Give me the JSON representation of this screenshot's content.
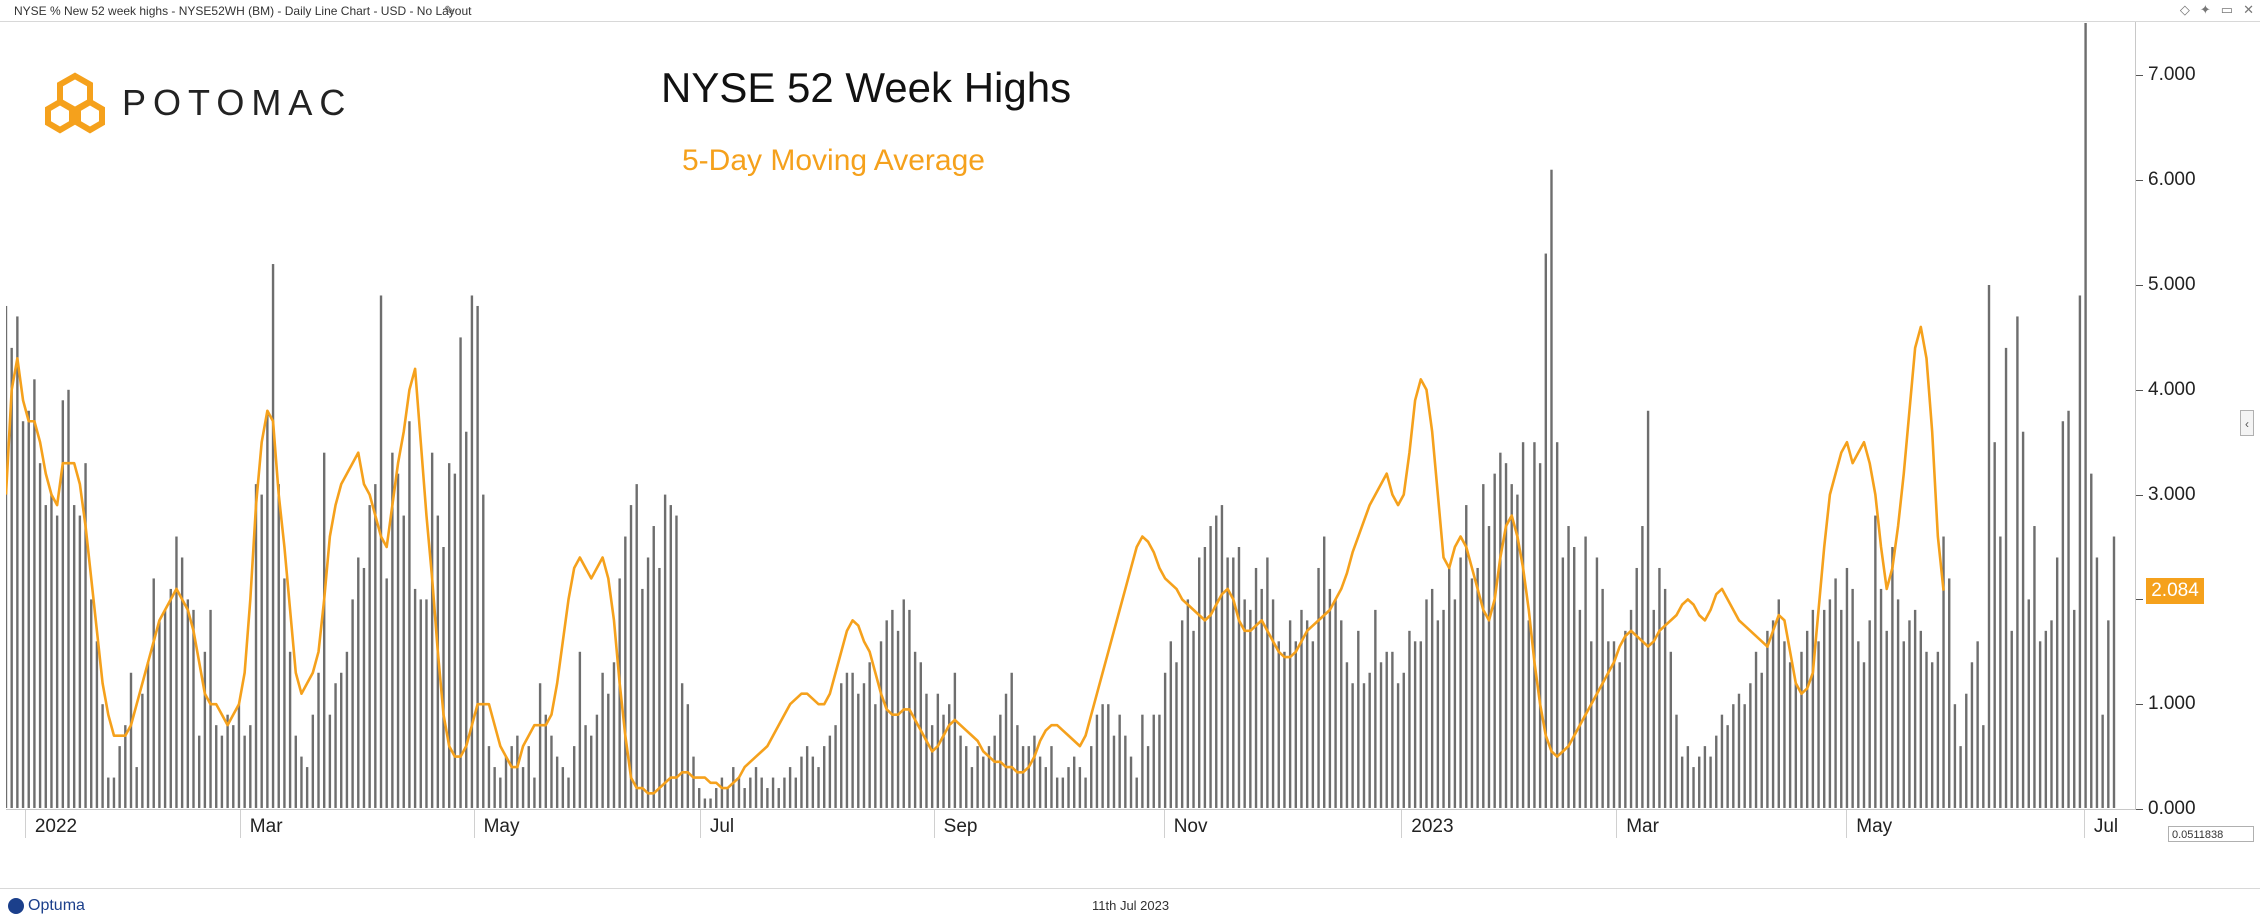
{
  "window": {
    "title": "NYSE % New 52 week highs - NYSE52WH (BM) - Daily Line Chart - USD - No Layout",
    "controls": [
      "◇",
      "✦",
      "▭",
      "✕"
    ]
  },
  "logo": {
    "text": "POTOMAC"
  },
  "chart_data": {
    "type": "bar",
    "title": "NYSE 52 Week Highs",
    "subtitle": "5-Day Moving Average",
    "xlabel": "",
    "ylabel": "",
    "ylim": [
      0,
      7.5
    ],
    "grid": false,
    "y_ticks": [
      "0.000",
      "1.000",
      "2.000",
      "3.000",
      "4.000",
      "5.000",
      "6.000",
      "7.000"
    ],
    "x_ticks": [
      "2022",
      "Mar",
      "May",
      "Jul",
      "Sep",
      "Nov",
      "2023",
      "Mar",
      "May",
      "Jul"
    ],
    "x_range": [
      "2021-12-29",
      "2023-07-11"
    ],
    "last_value": "2.084",
    "colors": {
      "bars": "#6e6e6e",
      "moving_average": "#f5a11c"
    },
    "series": [
      {
        "name": "NYSE % New 52 week highs",
        "kind": "bar",
        "values": [
          4.8,
          4.4,
          4.7,
          3.7,
          3.8,
          4.1,
          3.3,
          2.9,
          3.0,
          2.8,
          3.9,
          4.0,
          2.9,
          2.8,
          3.3,
          2.0,
          1.6,
          1.0,
          0.3,
          0.3,
          0.6,
          0.8,
          1.3,
          0.4,
          1.1,
          1.4,
          2.2,
          1.8,
          1.9,
          2.1,
          2.6,
          2.4,
          2.0,
          1.9,
          0.7,
          1.5,
          1.9,
          0.8,
          0.7,
          0.9,
          0.8,
          1.0,
          0.7,
          0.8,
          3.1,
          3.0,
          3.8,
          5.2,
          3.1,
          2.2,
          1.5,
          0.7,
          0.5,
          0.4,
          0.9,
          1.3,
          3.4,
          0.9,
          1.2,
          1.3,
          1.5,
          2.0,
          2.4,
          2.3,
          2.9,
          3.1,
          4.9,
          2.2,
          3.4,
          3.2,
          2.8,
          3.7,
          2.1,
          2.0,
          2.0,
          3.4,
          2.8,
          2.5,
          3.3,
          3.2,
          4.5,
          3.6,
          4.9,
          4.8,
          3.0,
          0.6,
          0.4,
          0.3,
          0.5,
          0.6,
          0.7,
          0.4,
          0.6,
          0.3,
          1.2,
          0.9,
          0.7,
          0.5,
          0.4,
          0.3,
          0.6,
          1.5,
          0.8,
          0.7,
          0.9,
          1.3,
          1.1,
          1.4,
          2.2,
          2.6,
          2.9,
          3.1,
          2.1,
          2.4,
          2.7,
          2.3,
          3.0,
          2.9,
          2.8,
          1.2,
          1.0,
          0.5,
          0.2,
          0.1,
          0.1,
          0.2,
          0.3,
          0.2,
          0.4,
          0.3,
          0.2,
          0.3,
          0.4,
          0.3,
          0.2,
          0.3,
          0.2,
          0.3,
          0.4,
          0.3,
          0.5,
          0.6,
          0.5,
          0.4,
          0.6,
          0.7,
          0.8,
          1.2,
          1.3,
          1.3,
          1.1,
          1.2,
          1.4,
          1.0,
          1.6,
          1.8,
          1.9,
          1.7,
          2.0,
          1.9,
          1.5,
          1.4,
          1.1,
          0.8,
          1.1,
          0.9,
          1.0,
          1.3,
          0.7,
          0.6,
          0.4,
          0.6,
          0.5,
          0.6,
          0.7,
          0.9,
          1.1,
          1.3,
          0.8,
          0.6,
          0.6,
          0.7,
          0.5,
          0.4,
          0.6,
          0.3,
          0.3,
          0.4,
          0.5,
          0.4,
          0.3,
          0.6,
          0.9,
          1.0,
          1.0,
          0.7,
          0.9,
          0.7,
          0.5,
          0.3,
          0.9,
          0.6,
          0.9,
          0.9,
          1.3,
          1.6,
          1.4,
          1.8,
          2.0,
          1.7,
          2.4,
          2.5,
          2.7,
          2.8,
          2.9,
          2.4,
          2.4,
          2.5,
          2.0,
          1.9,
          2.3,
          2.1,
          2.4,
          2.0,
          1.6,
          1.5,
          1.8,
          1.6,
          1.9,
          1.8,
          1.6,
          2.3,
          2.6,
          2.1,
          2.0,
          1.8,
          1.4,
          1.2,
          1.7,
          1.2,
          1.3,
          1.9,
          1.4,
          1.5,
          1.5,
          1.2,
          1.3,
          1.7,
          1.6,
          1.6,
          2.0,
          2.1,
          1.8,
          1.9,
          2.3,
          2.0,
          2.4,
          2.9,
          2.2,
          2.3,
          3.1,
          2.7,
          3.2,
          3.4,
          3.3,
          3.1,
          3.0,
          3.5,
          1.8,
          3.5,
          3.3,
          5.3,
          6.1,
          3.5,
          2.4,
          2.7,
          2.5,
          1.9,
          2.6,
          1.6,
          2.4,
          2.1,
          1.6,
          1.6,
          1.4,
          1.7,
          1.9,
          2.3,
          2.7,
          3.8,
          1.9,
          2.3,
          2.1,
          1.5,
          0.9,
          0.5,
          0.6,
          0.4,
          0.5,
          0.6,
          0.5,
          0.7,
          0.9,
          0.8,
          1.0,
          1.1,
          1.0,
          1.2,
          1.5,
          1.3,
          1.7,
          1.8,
          2.0,
          1.6,
          1.4,
          1.2,
          1.5,
          1.7,
          1.9,
          1.6,
          1.9,
          2.0,
          2.2,
          1.9,
          2.3,
          2.1,
          1.6,
          1.4,
          1.8,
          2.8,
          2.1,
          1.7,
          2.5,
          2.0,
          1.6,
          1.8,
          1.9,
          1.7,
          1.5,
          1.4,
          1.5,
          2.6,
          2.2,
          1.0,
          0.6,
          1.1,
          1.4,
          1.6,
          0.8,
          5.0,
          3.5,
          2.6,
          4.4,
          1.7,
          4.7,
          3.6,
          2.0,
          2.7,
          1.6,
          1.7,
          1.8,
          2.4,
          3.7,
          3.8,
          1.9,
          4.9,
          7.5,
          3.2,
          2.4,
          0.9,
          1.8,
          2.6
        ]
      },
      {
        "name": "5-Day Moving Average",
        "kind": "line",
        "values": [
          3.0,
          4.0,
          4.3,
          3.9,
          3.7,
          3.7,
          3.5,
          3.2,
          3.0,
          2.9,
          3.3,
          3.3,
          3.3,
          3.1,
          2.7,
          2.2,
          1.7,
          1.2,
          0.9,
          0.7,
          0.7,
          0.7,
          0.8,
          1.0,
          1.2,
          1.4,
          1.6,
          1.8,
          1.9,
          2.0,
          2.1,
          2.0,
          1.9,
          1.7,
          1.4,
          1.1,
          1.0,
          1.0,
          0.9,
          0.8,
          0.9,
          1.0,
          1.3,
          2.0,
          2.9,
          3.5,
          3.8,
          3.7,
          3.0,
          2.5,
          1.9,
          1.3,
          1.1,
          1.2,
          1.3,
          1.5,
          2.0,
          2.6,
          2.9,
          3.1,
          3.2,
          3.3,
          3.4,
          3.1,
          3.0,
          2.8,
          2.6,
          2.5,
          2.9,
          3.3,
          3.6,
          4.0,
          4.2,
          3.5,
          2.8,
          2.2,
          1.5,
          0.9,
          0.6,
          0.5,
          0.5,
          0.6,
          0.8,
          1.0,
          1.0,
          1.0,
          0.8,
          0.6,
          0.5,
          0.4,
          0.4,
          0.6,
          0.7,
          0.8,
          0.8,
          0.8,
          0.9,
          1.2,
          1.6,
          2.0,
          2.3,
          2.4,
          2.3,
          2.2,
          2.3,
          2.4,
          2.2,
          1.8,
          1.2,
          0.7,
          0.3,
          0.2,
          0.2,
          0.15,
          0.15,
          0.2,
          0.25,
          0.3,
          0.3,
          0.35,
          0.35,
          0.3,
          0.3,
          0.3,
          0.25,
          0.25,
          0.2,
          0.2,
          0.25,
          0.3,
          0.4,
          0.45,
          0.5,
          0.55,
          0.6,
          0.7,
          0.8,
          0.9,
          1.0,
          1.05,
          1.1,
          1.1,
          1.05,
          1.0,
          1.0,
          1.1,
          1.3,
          1.5,
          1.7,
          1.8,
          1.75,
          1.6,
          1.5,
          1.3,
          1.1,
          0.95,
          0.9,
          0.9,
          0.95,
          0.95,
          0.85,
          0.75,
          0.65,
          0.55,
          0.6,
          0.7,
          0.8,
          0.85,
          0.8,
          0.75,
          0.7,
          0.65,
          0.55,
          0.5,
          0.45,
          0.45,
          0.4,
          0.4,
          0.35,
          0.35,
          0.4,
          0.5,
          0.65,
          0.75,
          0.8,
          0.8,
          0.75,
          0.7,
          0.65,
          0.6,
          0.7,
          0.9,
          1.1,
          1.3,
          1.5,
          1.7,
          1.9,
          2.1,
          2.3,
          2.5,
          2.6,
          2.55,
          2.45,
          2.3,
          2.2,
          2.15,
          2.1,
          2.0,
          1.95,
          1.9,
          1.85,
          1.8,
          1.85,
          1.95,
          2.05,
          2.1,
          2.0,
          1.8,
          1.7,
          1.7,
          1.75,
          1.8,
          1.7,
          1.6,
          1.5,
          1.45,
          1.45,
          1.5,
          1.6,
          1.7,
          1.75,
          1.8,
          1.85,
          1.9,
          2.0,
          2.1,
          2.25,
          2.45,
          2.6,
          2.75,
          2.9,
          3.0,
          3.1,
          3.2,
          3.0,
          2.9,
          3.0,
          3.4,
          3.9,
          4.1,
          4.0,
          3.6,
          3.0,
          2.4,
          2.3,
          2.5,
          2.6,
          2.5,
          2.3,
          2.1,
          1.9,
          1.8,
          2.0,
          2.4,
          2.7,
          2.8,
          2.6,
          2.3,
          1.9,
          1.4,
          1.0,
          0.7,
          0.55,
          0.5,
          0.55,
          0.6,
          0.7,
          0.8,
          0.9,
          1.0,
          1.1,
          1.2,
          1.3,
          1.4,
          1.55,
          1.65,
          1.7,
          1.65,
          1.6,
          1.55,
          1.6,
          1.7,
          1.75,
          1.8,
          1.85,
          1.95,
          2.0,
          1.95,
          1.85,
          1.8,
          1.9,
          2.05,
          2.1,
          2.0,
          1.9,
          1.8,
          1.75,
          1.7,
          1.65,
          1.6,
          1.55,
          1.7,
          1.85,
          1.8,
          1.5,
          1.2,
          1.1,
          1.15,
          1.3,
          1.9,
          2.5,
          3.0,
          3.2,
          3.4,
          3.5,
          3.3,
          3.4,
          3.5,
          3.3,
          3.0,
          2.5,
          2.1,
          2.3,
          2.7,
          3.2,
          3.8,
          4.4,
          4.6,
          4.3,
          3.6,
          2.6,
          2.084
        ]
      }
    ]
  },
  "footer": {
    "brand": "Optuma",
    "date": "11th Jul 2023"
  },
  "scale_box": {
    "text": "0.0511838"
  }
}
